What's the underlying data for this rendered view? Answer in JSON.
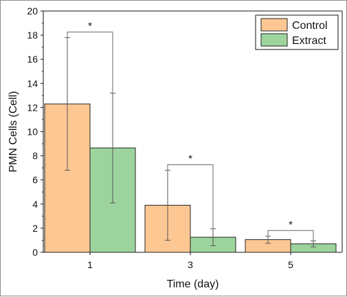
{
  "chart_data": {
    "type": "bar",
    "categories": [
      "1",
      "3",
      "5"
    ],
    "series": [
      {
        "name": "Control",
        "color": "#fdc793",
        "values": [
          12.3,
          3.9,
          1.05
        ],
        "error": [
          5.5,
          2.9,
          0.3
        ]
      },
      {
        "name": "Extract",
        "color": "#9dd49d",
        "values": [
          8.65,
          1.25,
          0.7
        ],
        "error": [
          4.55,
          0.7,
          0.25
        ]
      }
    ],
    "title": "",
    "xlabel": "Time (day)",
    "ylabel": "PMN Cells (Cell)",
    "ylim": [
      0,
      20
    ],
    "yticks": [
      "0",
      "2",
      "4",
      "6",
      "8",
      "10",
      "12",
      "14",
      "16",
      "18",
      "20"
    ],
    "significance": [
      {
        "category": "1",
        "label": "*"
      },
      {
        "category": "3",
        "label": "*"
      },
      {
        "category": "5",
        "label": "*"
      }
    ],
    "legend_position": "top-right",
    "grid": false
  }
}
